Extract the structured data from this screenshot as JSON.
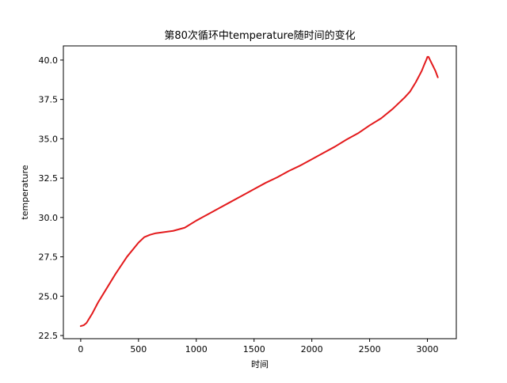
{
  "chart_data": {
    "type": "line",
    "title": "第80次循环中temperature随时间的变化",
    "xlabel": "时间",
    "ylabel": "temperature",
    "xlim": [
      -150,
      3250
    ],
    "ylim": [
      22.3,
      40.9
    ],
    "xticks": [
      0,
      500,
      1000,
      1500,
      2000,
      2500,
      3000
    ],
    "xtick_labels": [
      "0",
      "500",
      "1000",
      "1500",
      "2000",
      "2500",
      "3000"
    ],
    "yticks": [
      22.5,
      25.0,
      27.5,
      30.0,
      32.5,
      35.0,
      37.5,
      40.0
    ],
    "ytick_labels": [
      "22.5",
      "25.0",
      "27.5",
      "30.0",
      "32.5",
      "35.0",
      "37.5",
      "40.0"
    ],
    "grid": false,
    "legend": false,
    "series": [
      {
        "color": "#e31a1c",
        "x": [
          0,
          25,
          50,
          100,
          150,
          200,
          300,
          400,
          500,
          550,
          600,
          650,
          700,
          800,
          900,
          1000,
          1100,
          1200,
          1300,
          1400,
          1500,
          1600,
          1700,
          1800,
          1900,
          2000,
          2100,
          2200,
          2300,
          2400,
          2500,
          2600,
          2700,
          2800,
          2850,
          2900,
          2950,
          2975,
          2990,
          3000,
          3010,
          3030,
          3050,
          3070,
          3090
        ],
        "y": [
          23.1,
          23.15,
          23.3,
          23.9,
          24.6,
          25.2,
          26.4,
          27.5,
          28.4,
          28.75,
          28.9,
          29.0,
          29.05,
          29.15,
          29.35,
          29.8,
          30.2,
          30.6,
          31.0,
          31.4,
          31.8,
          32.2,
          32.55,
          32.95,
          33.3,
          33.7,
          34.1,
          34.5,
          34.95,
          35.35,
          35.85,
          36.3,
          36.9,
          37.6,
          38.0,
          38.6,
          39.3,
          39.75,
          40.0,
          40.2,
          40.2,
          39.9,
          39.6,
          39.3,
          38.9
        ]
      }
    ]
  }
}
